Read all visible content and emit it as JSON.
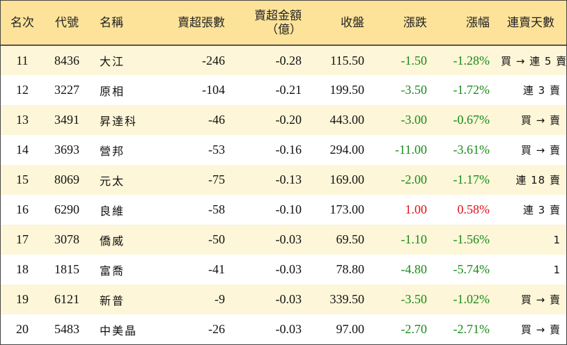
{
  "headers": {
    "rank": "名次",
    "code": "代號",
    "name": "名稱",
    "net_sell_lots": "賣超張數",
    "net_sell_amount": "賣超金額",
    "net_sell_amount_unit": "（億）",
    "close": "收盤",
    "change": "漲跌",
    "change_pct": "漲幅",
    "streak": "連賣天數"
  },
  "colors": {
    "header_bg": "#fde39a",
    "stripe_bg": "#fdf6d8",
    "negative": "#1a8a1a",
    "positive": "#e3101c"
  },
  "rows": [
    {
      "rank": "11",
      "code": "8436",
      "name": "大江",
      "lots": "-246",
      "amount": "-0.28",
      "close": "115.50",
      "change": "-1.50",
      "pct": "-1.28%",
      "streak": "買 → 連 5 賣"
    },
    {
      "rank": "12",
      "code": "3227",
      "name": "原相",
      "lots": "-104",
      "amount": "-0.21",
      "close": "199.50",
      "change": "-3.50",
      "pct": "-1.72%",
      "streak": "連 3 賣"
    },
    {
      "rank": "13",
      "code": "3491",
      "name": "昇達科",
      "lots": "-46",
      "amount": "-0.20",
      "close": "443.00",
      "change": "-3.00",
      "pct": "-0.67%",
      "streak": "買 → 賣"
    },
    {
      "rank": "14",
      "code": "3693",
      "name": "營邦",
      "lots": "-53",
      "amount": "-0.16",
      "close": "294.00",
      "change": "-11.00",
      "pct": "-3.61%",
      "streak": "買 → 賣"
    },
    {
      "rank": "15",
      "code": "8069",
      "name": "元太",
      "lots": "-75",
      "amount": "-0.13",
      "close": "169.00",
      "change": "-2.00",
      "pct": "-1.17%",
      "streak": "連 18 賣"
    },
    {
      "rank": "16",
      "code": "6290",
      "name": "良維",
      "lots": "-58",
      "amount": "-0.10",
      "close": "173.00",
      "change": "1.00",
      "pct": "0.58%",
      "streak": "連 3 賣"
    },
    {
      "rank": "17",
      "code": "3078",
      "name": "僑威",
      "lots": "-50",
      "amount": "-0.03",
      "close": "69.50",
      "change": "-1.10",
      "pct": "-1.56%",
      "streak": "1"
    },
    {
      "rank": "18",
      "code": "1815",
      "name": "富喬",
      "lots": "-41",
      "amount": "-0.03",
      "close": "78.80",
      "change": "-4.80",
      "pct": "-5.74%",
      "streak": "1"
    },
    {
      "rank": "19",
      "code": "6121",
      "name": "新普",
      "lots": "-9",
      "amount": "-0.03",
      "close": "339.50",
      "change": "-3.50",
      "pct": "-1.02%",
      "streak": "買 → 賣"
    },
    {
      "rank": "20",
      "code": "5483",
      "name": "中美晶",
      "lots": "-26",
      "amount": "-0.03",
      "close": "97.00",
      "change": "-2.70",
      "pct": "-2.71%",
      "streak": "買 → 賣"
    }
  ]
}
